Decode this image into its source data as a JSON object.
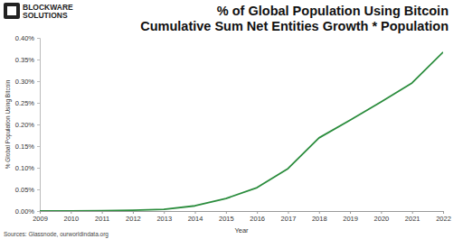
{
  "chart_data": {
    "type": "line",
    "title": "% of Global Population Using Bitcoin",
    "subtitle": "Cumulative Sum Net Entities Growth * Population",
    "x_label": "Year",
    "y_label": "% Global Population Using Bitcoin",
    "annotations": [
      "BLOCKWARE",
      "SOLUTIONS"
    ],
    "source": "Sources: Glassnode, ourworldindata.org",
    "x": [
      2009,
      2010,
      2011,
      2012,
      2013,
      2014,
      2015,
      2016,
      2017,
      2018,
      2019,
      2020,
      2021,
      2022
    ],
    "values": [
      0,
      0,
      0.0005,
      0.002,
      0.004,
      0.012,
      0.029,
      0.054,
      0.098,
      0.169,
      0.21,
      0.252,
      0.296,
      0.367
    ],
    "color": "#2a8c3c",
    "xlim": [
      2009,
      2022
    ],
    "xticks": [
      2009,
      2010,
      2011,
      2012,
      2013,
      2014,
      2015,
      2016,
      2017,
      2018,
      2019,
      2020,
      2021,
      2022
    ],
    "ylim": [
      0,
      0.4
    ],
    "yticks": [
      {
        "value": 0,
        "label": "0.00%"
      },
      {
        "value": 0.05,
        "label": "0.05%"
      },
      {
        "value": 0.1,
        "label": "0.10%"
      },
      {
        "value": 0.15,
        "label": "0.15%"
      },
      {
        "value": 0.2,
        "label": "0.20%"
      },
      {
        "value": 0.25,
        "label": "0.25%"
      },
      {
        "value": 0.3,
        "label": "0.30%"
      },
      {
        "value": 0.35,
        "label": "0.35%"
      },
      {
        "value": 0.4,
        "label": "0.40%"
      }
    ],
    "grid": false
  }
}
